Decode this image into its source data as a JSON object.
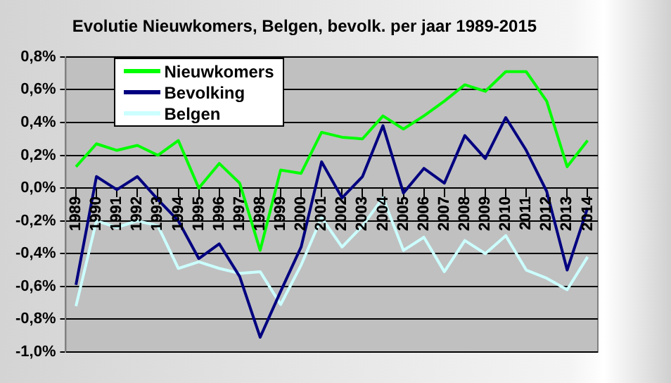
{
  "chart_data": {
    "type": "line",
    "title": "Evolutie Nieuwkomers, Belgen, bevolk. per jaar 1989-2015",
    "categories": [
      "1989",
      "1990",
      "1991",
      "1992",
      "1993",
      "1994",
      "1995",
      "1996",
      "1997",
      "1998",
      "1999",
      "2000",
      "2001",
      "2002",
      "2003",
      "2004",
      "2005",
      "2006",
      "2007",
      "2008",
      "2009",
      "2010",
      "2011",
      "2012",
      "2013",
      "2014"
    ],
    "series": [
      {
        "name": "Nieuwkomers",
        "color": "#00ff00",
        "values": [
          0.13,
          0.27,
          0.23,
          0.26,
          0.2,
          0.29,
          0.0,
          0.15,
          0.03,
          -0.38,
          0.11,
          0.09,
          0.34,
          0.31,
          0.3,
          0.44,
          0.36,
          0.44,
          0.53,
          0.63,
          0.59,
          0.71,
          0.71,
          0.53,
          0.13,
          0.29
        ]
      },
      {
        "name": "Bevolking",
        "color": "#000080",
        "values": [
          -0.59,
          0.07,
          -0.01,
          0.07,
          -0.07,
          -0.2,
          -0.43,
          -0.34,
          -0.54,
          -0.91,
          -0.63,
          -0.36,
          0.16,
          -0.06,
          0.07,
          0.38,
          -0.03,
          0.12,
          0.03,
          0.32,
          0.18,
          0.43,
          0.23,
          -0.02,
          -0.5,
          -0.12
        ]
      },
      {
        "name": "Belgen",
        "color": "#ccffff",
        "values": [
          -0.72,
          -0.2,
          -0.24,
          -0.2,
          -0.23,
          -0.49,
          -0.45,
          -0.49,
          -0.52,
          -0.51,
          -0.71,
          -0.47,
          -0.18,
          -0.36,
          -0.23,
          -0.06,
          -0.38,
          -0.3,
          -0.51,
          -0.32,
          -0.4,
          -0.29,
          -0.5,
          -0.55,
          -0.62,
          -0.42
        ]
      }
    ],
    "ylim": [
      -1.0,
      0.8
    ],
    "yticks": [
      {
        "value": -1.0,
        "label": "-1,0%"
      },
      {
        "value": -0.8,
        "label": "-0,8%"
      },
      {
        "value": -0.6,
        "label": "-0,6%"
      },
      {
        "value": -0.4,
        "label": "-0,4%"
      },
      {
        "value": -0.2,
        "label": "-0,2%"
      },
      {
        "value": 0.0,
        "label": "0,0%"
      },
      {
        "value": 0.2,
        "label": "0,2%"
      },
      {
        "value": 0.4,
        "label": "0,4%"
      },
      {
        "value": 0.6,
        "label": "0,6%"
      },
      {
        "value": 0.8,
        "label": "0,8%"
      }
    ],
    "grid": "y",
    "legend": "top left",
    "marker": "none",
    "line_style": "solid"
  }
}
